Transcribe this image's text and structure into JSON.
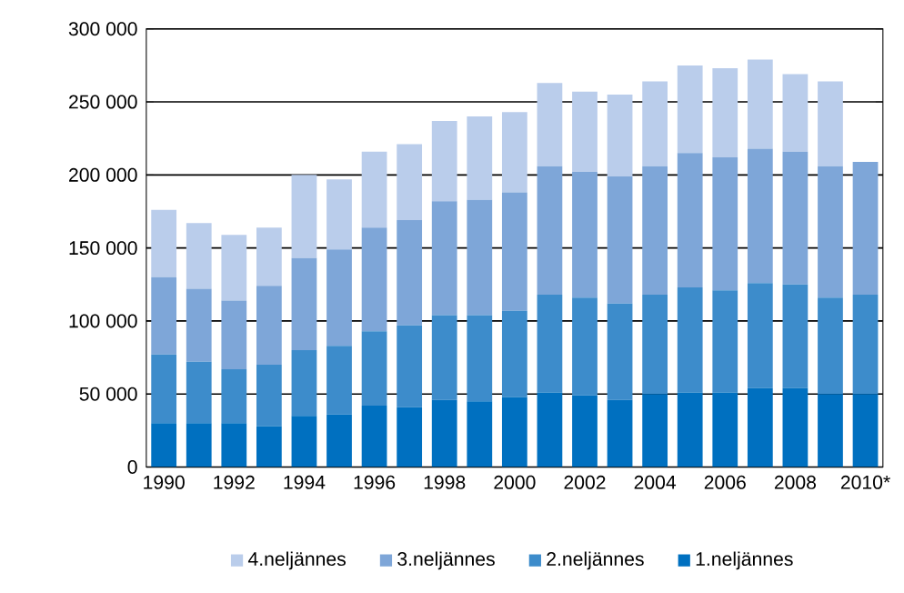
{
  "chart_data": {
    "type": "bar",
    "stacked": true,
    "categories": [
      "1990",
      null,
      "1992",
      null,
      "1994",
      null,
      "1996",
      null,
      "1998",
      null,
      "2000",
      null,
      "2002",
      null,
      "2004",
      null,
      "2006",
      null,
      "2008",
      null,
      "2010*"
    ],
    "series": [
      {
        "name": "1.neljännes",
        "color": "#0070c0",
        "values": [
          30000,
          30000,
          30000,
          28000,
          35000,
          36000,
          42000,
          41000,
          46000,
          45000,
          48000,
          51000,
          49000,
          46000,
          50000,
          51000,
          51000,
          54000,
          54000,
          50000,
          50000
        ]
      },
      {
        "name": "2.neljännes",
        "color": "#3d8ccb",
        "values": [
          47000,
          42000,
          37000,
          42000,
          45000,
          47000,
          51000,
          56000,
          58000,
          59000,
          59000,
          67000,
          67000,
          66000,
          68000,
          72000,
          70000,
          72000,
          71000,
          66000,
          68000
        ]
      },
      {
        "name": "3.neljännes",
        "color": "#7ea6d8",
        "values": [
          53000,
          50000,
          47000,
          54000,
          63000,
          66000,
          71000,
          72000,
          78000,
          79000,
          81000,
          88000,
          86000,
          87000,
          88000,
          92000,
          91000,
          92000,
          91000,
          90000,
          91000
        ]
      },
      {
        "name": "4.neljännes",
        "color": "#bacdeb",
        "values": [
          46000,
          45000,
          45000,
          40000,
          57000,
          48000,
          52000,
          52000,
          55000,
          57000,
          55000,
          57000,
          55000,
          56000,
          58000,
          60000,
          61000,
          61000,
          53000,
          58000,
          null
        ]
      }
    ],
    "ylim": [
      0,
      300000
    ],
    "yticks": [
      0,
      {
        "value": 50000,
        "label": "50 000"
      },
      {
        "value": 100000,
        "label": "100 000"
      },
      {
        "value": 150000,
        "label": "150 000"
      },
      {
        "value": 200000,
        "label": "200 000"
      },
      {
        "value": 250000,
        "label": "250 000"
      },
      {
        "value": 300000,
        "label": "300 000"
      }
    ],
    "grid": "y",
    "legend": "bottom"
  }
}
